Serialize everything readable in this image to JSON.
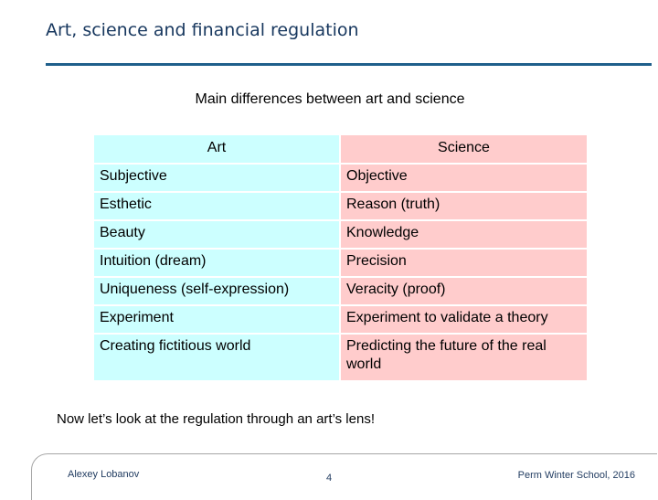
{
  "slide": {
    "title": "Art, science and financial regulation",
    "table_caption": "Main differences between art and science",
    "closing_text": "Now let’s look at the regulation through an art’s lens!"
  },
  "table": {
    "headers": {
      "art": "Art",
      "science": "Science"
    },
    "rows": [
      {
        "art": "Subjective",
        "science": "Objective"
      },
      {
        "art": "Esthetic",
        "science": "Reason (truth)"
      },
      {
        "art": "Beauty",
        "science": "Knowledge"
      },
      {
        "art": "Intuition (dream)",
        "science": "Precision"
      },
      {
        "art": "Uniqueness (self-expression)",
        "science": "Veracity (proof)"
      },
      {
        "art": "Experiment",
        "science": "Experiment to validate a theory"
      },
      {
        "art": "Creating fictitious world",
        "science": "Predicting the future of the real world"
      }
    ],
    "colors": {
      "art": "#ccffff",
      "science": "#ffcccc"
    }
  },
  "footer": {
    "author": "Alexey Lobanov",
    "page_number": "4",
    "event": "Perm Winter School, 2016"
  },
  "theme": {
    "title_color": "#17375e",
    "rule_color": "#1f5f8b"
  }
}
